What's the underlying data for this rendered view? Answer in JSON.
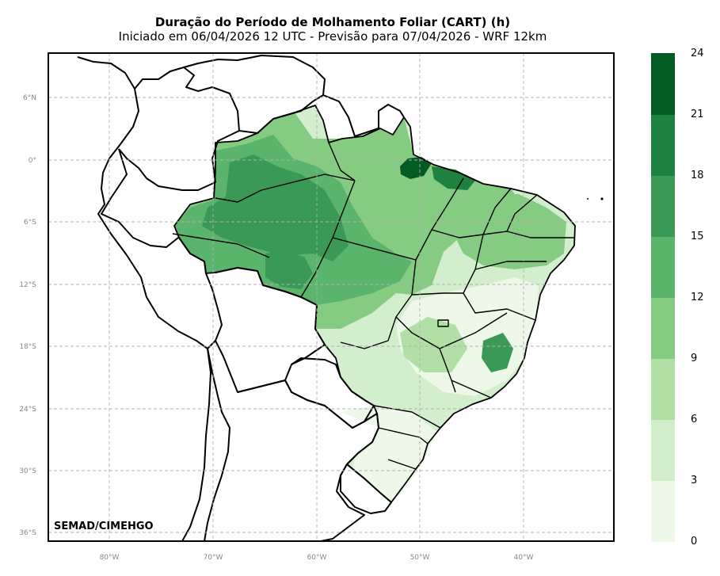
{
  "title": "Duração do Período de Molhamento Foliar (CART) (h)",
  "subtitle": "Iniciado em 06/04/2026 12 UTC - Previsão para 07/04/2026 - WRF 12km",
  "credit": "SEMAD/CIMEHGO",
  "map": {
    "lat_labels": [
      "6°N",
      "0°",
      "6°S",
      "12°S",
      "18°S",
      "24°S",
      "30°S",
      "36°S"
    ],
    "lon_labels": [
      "80°W",
      "70°W",
      "60°W",
      "50°W",
      "40°W"
    ],
    "gridlines": "dashed"
  },
  "colorbar": {
    "ticks": [
      "0",
      "3",
      "6",
      "9",
      "12",
      "15",
      "18",
      "21",
      "24"
    ],
    "colors": [
      "#edf8e9",
      "#d3eecd",
      "#b2dfa5",
      "#86cb82",
      "#5bb46b",
      "#3a9a55",
      "#1e8140",
      "#035b24"
    ]
  }
}
